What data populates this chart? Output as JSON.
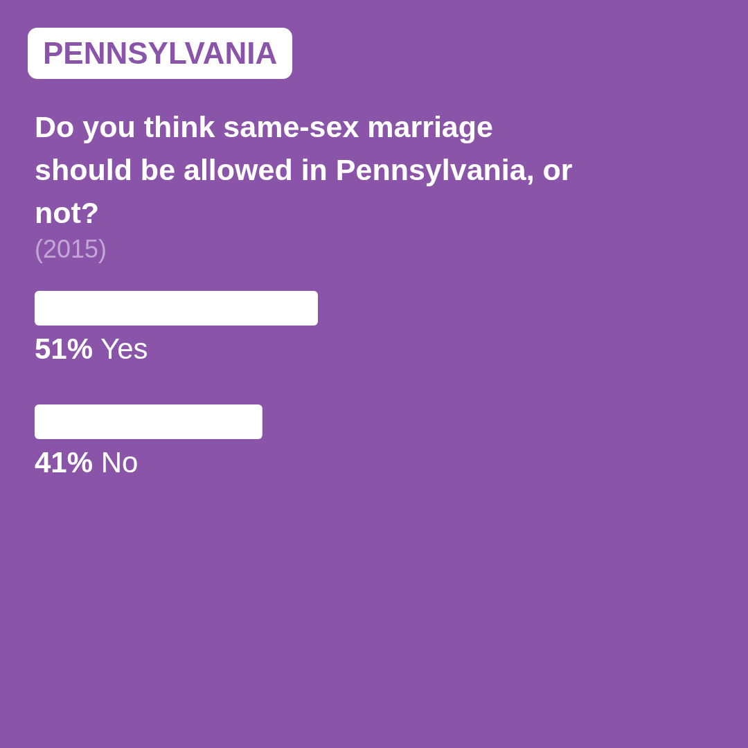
{
  "chart_data": {
    "type": "bar",
    "orientation": "horizontal",
    "title": "Do you think same-sex marriage should be allowed in Pennsylvania, or not?",
    "annotations": [
      "PENNSYLVANIA",
      "(2015)"
    ],
    "categories": [
      "Yes",
      "No"
    ],
    "values": [
      51,
      41
    ],
    "value_labels": [
      "51%",
      "41%"
    ],
    "color": "#ffffff",
    "tick_labels": false
  }
}
